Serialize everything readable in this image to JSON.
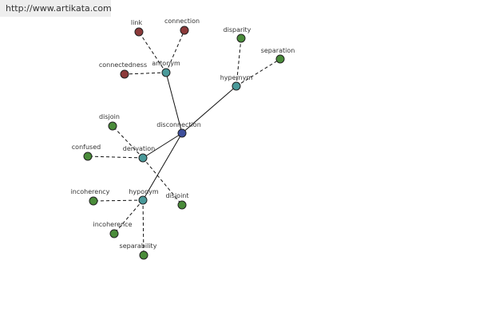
{
  "watermark": "http://www.artikata.com",
  "colors": {
    "center": "#3e4f9c",
    "relation": "#4a9a9a",
    "antonym_leaf": "#8c3a3a",
    "leaf": "#4a8c3a",
    "edge": "#111111"
  },
  "graph": {
    "nodes": [
      {
        "id": "disconnection",
        "label": "disconnection",
        "kind": "center"
      },
      {
        "id": "antonym",
        "label": "antonym",
        "kind": "relation"
      },
      {
        "id": "hypernym",
        "label": "hypernym",
        "kind": "relation"
      },
      {
        "id": "derivation",
        "label": "derivation",
        "kind": "relation"
      },
      {
        "id": "hyponym",
        "label": "hyponym",
        "kind": "relation"
      },
      {
        "id": "link",
        "label": "link",
        "kind": "antonym_leaf"
      },
      {
        "id": "connection",
        "label": "connection",
        "kind": "antonym_leaf"
      },
      {
        "id": "connectedness",
        "label": "connectedness",
        "kind": "antonym_leaf"
      },
      {
        "id": "disparity",
        "label": "disparity",
        "kind": "leaf"
      },
      {
        "id": "separation",
        "label": "separation",
        "kind": "leaf"
      },
      {
        "id": "disjoin",
        "label": "disjoin",
        "kind": "leaf"
      },
      {
        "id": "confused",
        "label": "confused",
        "kind": "leaf"
      },
      {
        "id": "disjoint",
        "label": "disjoint",
        "kind": "leaf"
      },
      {
        "id": "incoherency",
        "label": "incoherency",
        "kind": "leaf"
      },
      {
        "id": "incoherence",
        "label": "incoherence",
        "kind": "leaf"
      },
      {
        "id": "separability",
        "label": "separability",
        "kind": "leaf"
      }
    ],
    "edges": [
      {
        "from": "disconnection",
        "to": "antonym",
        "style": "solid"
      },
      {
        "from": "disconnection",
        "to": "hypernym",
        "style": "solid"
      },
      {
        "from": "disconnection",
        "to": "derivation",
        "style": "solid"
      },
      {
        "from": "disconnection",
        "to": "hyponym",
        "style": "solid"
      },
      {
        "from": "antonym",
        "to": "link",
        "style": "dashed"
      },
      {
        "from": "antonym",
        "to": "connection",
        "style": "dashed"
      },
      {
        "from": "antonym",
        "to": "connectedness",
        "style": "dashed"
      },
      {
        "from": "hypernym",
        "to": "disparity",
        "style": "dashed"
      },
      {
        "from": "hypernym",
        "to": "separation",
        "style": "dashed"
      },
      {
        "from": "derivation",
        "to": "disjoin",
        "style": "dashed"
      },
      {
        "from": "derivation",
        "to": "confused",
        "style": "dashed"
      },
      {
        "from": "derivation",
        "to": "disjoint",
        "style": "dashed"
      },
      {
        "from": "hyponym",
        "to": "incoherency",
        "style": "dashed"
      },
      {
        "from": "hyponym",
        "to": "incoherence",
        "style": "dashed"
      },
      {
        "from": "hyponym",
        "to": "separability",
        "style": "dashed"
      }
    ]
  }
}
